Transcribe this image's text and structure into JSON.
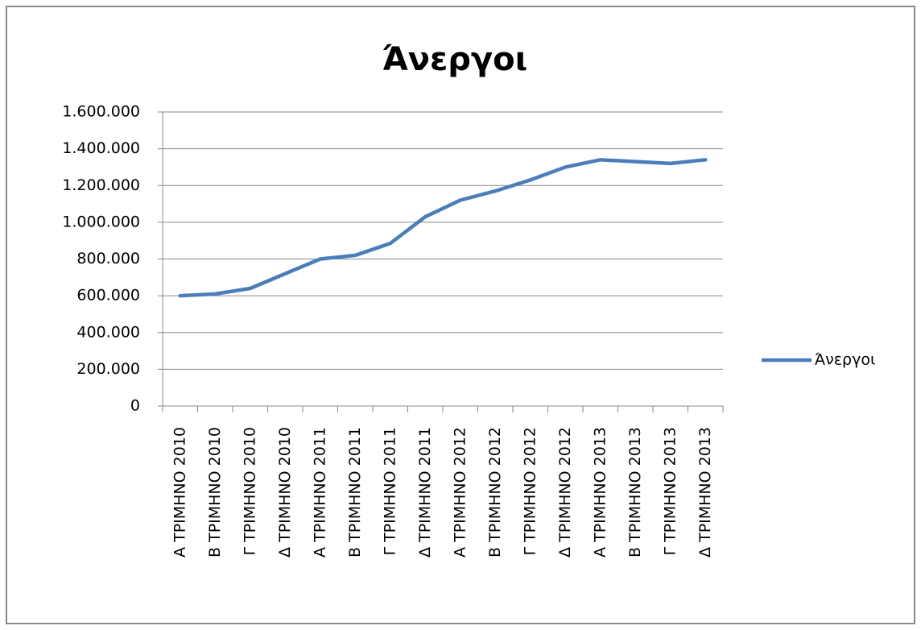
{
  "chart_data": {
    "type": "line",
    "title": "Άνεργοι",
    "categories": [
      "Α ΤΡΙΜΗΝΟ 2010",
      "Β ΤΡΙΜΗΝΟ 2010",
      "Γ ΤΡΙΜΗΝΟ 2010",
      "Δ ΤΡΙΜΗΝΟ 2010",
      "Α ΤΡΙΜΗΝΟ 2011",
      "Β ΤΡΙΜΗΝΟ 2011",
      "Γ ΤΡΙΜΗΝΟ 2011",
      "Δ ΤΡΙΜΗΝΟ 2011",
      "Α ΤΡΙΜΗΝΟ 2012",
      "Β ΤΡΙΜΗΝΟ 2012",
      "Γ ΤΡΙΜΗΝΟ 2012",
      "Δ ΤΡΙΜΗΝΟ 2012",
      "Α ΤΡΙΜΗΝΟ 2013",
      "Β ΤΡΙΜΗΝΟ 2013",
      "Γ ΤΡΙΜΗΝΟ 2013",
      "Δ ΤΡΙΜΗΝΟ 2013"
    ],
    "series": [
      {
        "name": "Άνεργοι",
        "color": "#4a7ebb",
        "values": [
          600000,
          610000,
          640000,
          720000,
          800000,
          820000,
          885000,
          1030000,
          1120000,
          1170000,
          1230000,
          1300000,
          1340000,
          1330000,
          1320000,
          1340000
        ]
      }
    ],
    "ylim": [
      0,
      1600000
    ],
    "yticks": [
      0,
      {
        "value": 200000,
        "label": "200.000"
      },
      {
        "value": 400000,
        "label": "400.000"
      },
      {
        "value": 600000,
        "label": "600.000"
      },
      {
        "value": 800000,
        "label": "800.000"
      },
      {
        "value": 1000000,
        "label": "1.000.000"
      },
      {
        "value": 1200000,
        "label": "1.200.000"
      },
      {
        "value": 1400000,
        "label": "1.400.000"
      },
      {
        "value": 1600000,
        "label": "1.600.000"
      }
    ],
    "grid": true,
    "legend": "right"
  }
}
